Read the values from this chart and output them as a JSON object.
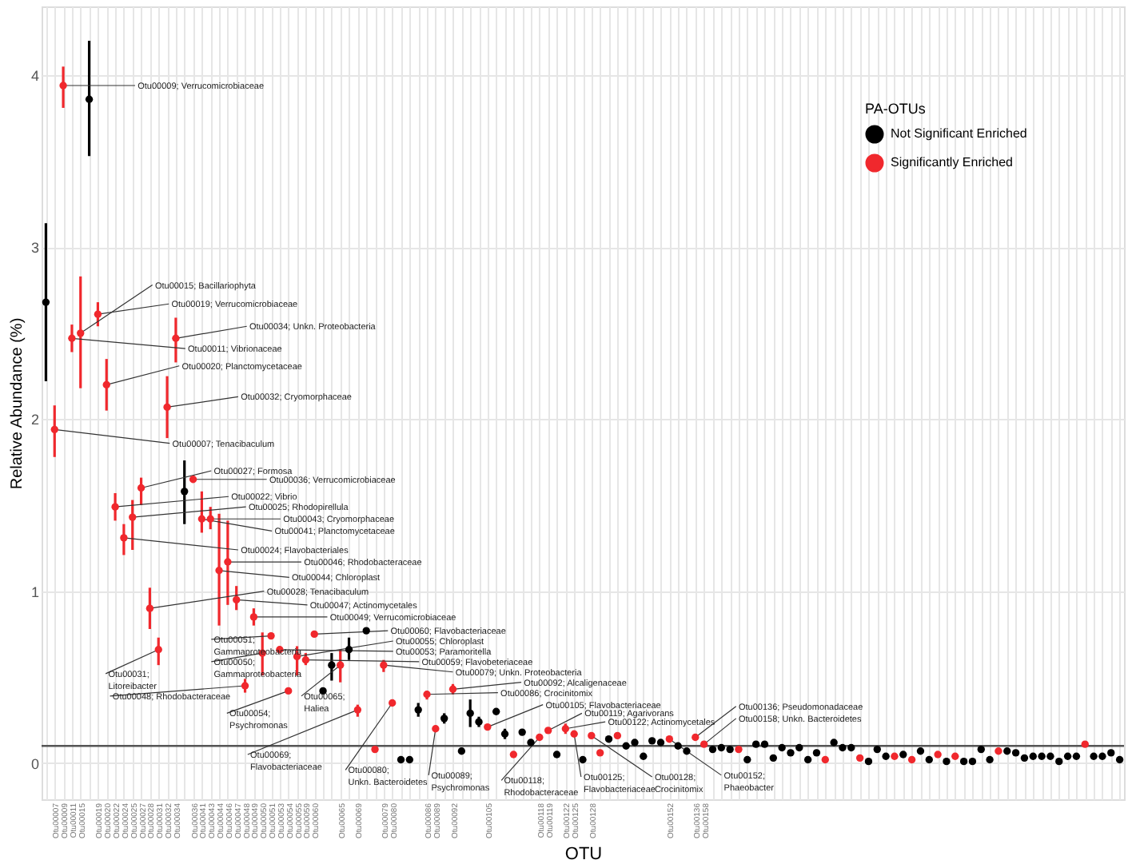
{
  "chart_data": {
    "type": "scatter",
    "xlabel": "OTU",
    "ylabel": "Relative Abundance (%)",
    "legend_title": "PA-OTUs",
    "legend": "top right",
    "grid": true,
    "marker": "circle",
    "ylim": [
      -0.21,
      4.4
    ],
    "yticks": [
      0,
      1,
      2,
      3,
      4
    ],
    "categories": [
      null,
      "Otu00007",
      "Otu00009",
      "Otu00011",
      "Otu00015",
      null,
      "Otu00019",
      "Otu00020",
      "Otu00022",
      "Otu00024",
      "Otu00025",
      "Otu00027",
      "Otu00028",
      "Otu00031",
      "Otu00032",
      "Otu00034",
      null,
      "Otu00036",
      "Otu00041",
      "Otu00043",
      "Otu00044",
      "Otu00046",
      "Otu00047",
      "Otu00048",
      "Otu00049",
      "Otu00050",
      "Otu00051",
      "Otu00053",
      "Otu00054",
      "Otu00055",
      "Otu00059",
      "Otu00060",
      null,
      null,
      "Otu00065",
      null,
      "Otu00069",
      null,
      null,
      "Otu00079",
      "Otu00080",
      null,
      null,
      null,
      "Otu00086",
      "Otu00089",
      null,
      "Otu00092",
      null,
      null,
      null,
      "Otu00105",
      null,
      null,
      null,
      null,
      null,
      "Otu00118",
      "Otu00119",
      null,
      "Otu00122",
      "Otu00125",
      null,
      "Otu00128",
      null,
      null,
      null,
      null,
      null,
      null,
      null,
      null,
      "Otu00152",
      null,
      null,
      "Otu00136",
      "Otu00158",
      null,
      null,
      null,
      null,
      null,
      null,
      null,
      null,
      null,
      null,
      null,
      null,
      null,
      null,
      null,
      null,
      null,
      null,
      null,
      null,
      null,
      null,
      null,
      null,
      null,
      null,
      null,
      null,
      null,
      null,
      null,
      null,
      null,
      null,
      null,
      null,
      null,
      null,
      null,
      null,
      null,
      null,
      null,
      null,
      null,
      null,
      null,
      null
    ],
    "series": [
      {
        "name": "Not Significant Enriched",
        "color": "#000000",
        "values": [
          2.68,
          null,
          null,
          null,
          null,
          3.86,
          null,
          null,
          null,
          null,
          null,
          null,
          null,
          null,
          null,
          null,
          1.58,
          null,
          null,
          null,
          null,
          null,
          null,
          null,
          null,
          null,
          null,
          null,
          null,
          null,
          null,
          null,
          0.42,
          0.57,
          null,
          0.66,
          null,
          0.77,
          null,
          null,
          null,
          0.02,
          0.02,
          0.31,
          null,
          null,
          0.26,
          null,
          0.07,
          0.29,
          0.24,
          null,
          0.3,
          0.17,
          null,
          0.18,
          0.12,
          null,
          null,
          0.05,
          null,
          null,
          0.02,
          null,
          null,
          0.14,
          null,
          0.1,
          0.12,
          0.04,
          0.13,
          0.12,
          null,
          0.1,
          0.07,
          null,
          null,
          0.08,
          0.09,
          0.08,
          null,
          0.02,
          0.11,
          0.11,
          0.03,
          0.09,
          0.06,
          0.09,
          0.02,
          0.06,
          null,
          0.12,
          0.09,
          0.09,
          null,
          0.01,
          0.08,
          0.04,
          null,
          0.05,
          null,
          0.07,
          0.02,
          null,
          0.01,
          null,
          0.01,
          0.01,
          0.08,
          0.02,
          null,
          0.07,
          0.06,
          0.03,
          0.04,
          0.04,
          0.04,
          0.01,
          0.04,
          0.04,
          null,
          0.04,
          0.04,
          0.06,
          0.02
        ],
        "errors": [
          [
            2.22,
            3.14
          ],
          null,
          null,
          null,
          null,
          [
            3.53,
            4.2
          ],
          null,
          null,
          null,
          null,
          null,
          null,
          null,
          null,
          null,
          null,
          [
            1.39,
            1.76
          ],
          null,
          null,
          null,
          null,
          null,
          null,
          null,
          null,
          null,
          null,
          null,
          null,
          null,
          null,
          null,
          null,
          [
            0.48,
            0.64
          ],
          null,
          [
            0.6,
            0.73
          ],
          null,
          null,
          null,
          null,
          null,
          null,
          null,
          [
            0.27,
            0.35
          ],
          null,
          null,
          [
            0.23,
            0.29
          ],
          null,
          null,
          [
            0.21,
            0.37
          ],
          [
            0.21,
            0.27
          ],
          null,
          null,
          [
            0.14,
            0.2
          ],
          null,
          null,
          null,
          null,
          null,
          null,
          null,
          null,
          null,
          null,
          null,
          null,
          null,
          null,
          null,
          null,
          null,
          null,
          null,
          null,
          null,
          null,
          null,
          null,
          null,
          null,
          null,
          null,
          null,
          null,
          null,
          null,
          null,
          null,
          null,
          null,
          null,
          null,
          null,
          null,
          null,
          null,
          null,
          null,
          null,
          null,
          null,
          null,
          null,
          null,
          null,
          null,
          null,
          null,
          null,
          null,
          null,
          null,
          null,
          null,
          null,
          null,
          null,
          null,
          null,
          null,
          null,
          null,
          null,
          null,
          null
        ]
      },
      {
        "name": "Significantly Enriched",
        "color": "#f0282d",
        "values": [
          null,
          1.94,
          3.94,
          2.47,
          2.5,
          null,
          2.61,
          2.2,
          1.49,
          1.31,
          1.43,
          1.6,
          0.9,
          0.66,
          2.07,
          2.47,
          null,
          1.65,
          1.42,
          1.42,
          1.12,
          1.17,
          0.95,
          0.45,
          0.85,
          0.64,
          0.74,
          0.66,
          0.42,
          0.62,
          0.6,
          0.75,
          null,
          null,
          0.57,
          null,
          0.31,
          null,
          0.08,
          0.57,
          0.35,
          null,
          null,
          null,
          0.4,
          0.2,
          null,
          0.43,
          null,
          null,
          null,
          0.21,
          null,
          null,
          0.05,
          null,
          null,
          0.15,
          0.19,
          null,
          0.2,
          0.17,
          null,
          0.16,
          0.06,
          null,
          0.16,
          null,
          null,
          null,
          null,
          null,
          0.14,
          null,
          null,
          0.15,
          0.11,
          null,
          null,
          null,
          0.08,
          null,
          null,
          null,
          null,
          null,
          null,
          null,
          null,
          null,
          0.02,
          null,
          null,
          null,
          0.03,
          null,
          null,
          null,
          0.04,
          null,
          0.02,
          null,
          null,
          0.05,
          null,
          0.04,
          null,
          null,
          null,
          null,
          0.07,
          null,
          null,
          null,
          null,
          null,
          null,
          null,
          null,
          null,
          0.11,
          null,
          null,
          null,
          null
        ],
        "errors": [
          null,
          [
            1.78,
            2.08
          ],
          [
            3.81,
            4.05
          ],
          [
            2.39,
            2.55
          ],
          [
            2.18,
            2.83
          ],
          null,
          [
            2.54,
            2.68
          ],
          [
            2.05,
            2.35
          ],
          [
            1.41,
            1.57
          ],
          [
            1.21,
            1.39
          ],
          [
            1.24,
            1.53
          ],
          [
            1.5,
            1.66
          ],
          [
            0.78,
            1.02
          ],
          [
            0.57,
            0.73
          ],
          [
            1.89,
            2.25
          ],
          [
            2.33,
            2.59
          ],
          null,
          [
            1.63,
            1.67
          ],
          [
            1.34,
            1.58
          ],
          [
            1.36,
            1.49
          ],
          [
            0.8,
            1.45
          ],
          [
            0.92,
            1.41
          ],
          [
            0.89,
            1.03
          ],
          [
            0.41,
            0.49
          ],
          [
            0.8,
            0.9
          ],
          [
            0.51,
            0.76
          ],
          [
            0.72,
            0.76
          ],
          null,
          null,
          [
            0.51,
            0.68
          ],
          [
            0.57,
            0.64
          ],
          null,
          null,
          null,
          [
            0.47,
            0.66
          ],
          null,
          [
            0.27,
            0.34
          ],
          null,
          null,
          [
            0.53,
            0.6
          ],
          null,
          null,
          null,
          null,
          [
            0.37,
            0.42
          ],
          null,
          null,
          [
            0.4,
            0.46
          ],
          null,
          null,
          null,
          null,
          null,
          null,
          null,
          null,
          null,
          null,
          null,
          null,
          [
            0.17,
            0.23
          ],
          null,
          null,
          null,
          null,
          null,
          null,
          null,
          null,
          null,
          null,
          null,
          null,
          null,
          null,
          null,
          null,
          null,
          null,
          null,
          null,
          null,
          null,
          null,
          null,
          null,
          null,
          null,
          null,
          null,
          null,
          null,
          null,
          null,
          null,
          null,
          null,
          null,
          null,
          null,
          null,
          null,
          null,
          null,
          null,
          null,
          null,
          null,
          null,
          null,
          null,
          null,
          null,
          null,
          null,
          null,
          null,
          null,
          null,
          null,
          null,
          null,
          null,
          null,
          null
        ]
      }
    ],
    "ref_lines": [
      {
        "axis": "y",
        "value": 0.1,
        "color": "#555555"
      }
    ],
    "annotations": [
      {
        "text": "Otu00009; Verrucomicrobiaceae",
        "x": "Otu00009",
        "y": 3.94
      },
      {
        "text": "Otu00015; Bacillariophyta",
        "x": "Otu00015",
        "y": 2.5
      },
      {
        "text": "Otu00019; Verrucomicrobiaceae",
        "x": "Otu00019",
        "y": 2.61
      },
      {
        "text": "Otu00034; Unkn. Proteobacteria",
        "x": "Otu00034",
        "y": 2.47
      },
      {
        "text": "Otu00011; Vibrionaceae",
        "x": "Otu00011",
        "y": 2.47
      },
      {
        "text": "Otu00020; Planctomycetaceae",
        "x": "Otu00020",
        "y": 2.2
      },
      {
        "text": "Otu00032; Cryomorphaceae",
        "x": "Otu00032",
        "y": 2.07
      },
      {
        "text": "Otu00007; Tenacibaculum",
        "x": "Otu00007",
        "y": 1.94
      },
      {
        "text": "Otu00027; Formosa",
        "x": "Otu00027",
        "y": 1.6
      },
      {
        "text": "Otu00036; Verrucomicrobiaceae",
        "x": "Otu00036",
        "y": 1.65
      },
      {
        "text": "Otu00022; Vibrio",
        "x": "Otu00022",
        "y": 1.49
      },
      {
        "text": "Otu00025; Rhodopirellula",
        "x": "Otu00025",
        "y": 1.43
      },
      {
        "text": "Otu00043; Cryomorphaceae",
        "x": "Otu00043",
        "y": 1.42
      },
      {
        "text": "Otu00041; Planctomycetaceae",
        "x": "Otu00041",
        "y": 1.42
      },
      {
        "text": "Otu00024; Flavobacteriales",
        "x": "Otu00024",
        "y": 1.31
      },
      {
        "text": "Otu00046; Rhodobacteraceae",
        "x": "Otu00046",
        "y": 1.17
      },
      {
        "text": "Otu00044; Chloroplast",
        "x": "Otu00044",
        "y": 1.12
      },
      {
        "text": "Otu00028; Tenacibaculum",
        "x": "Otu00028",
        "y": 0.9
      },
      {
        "text": "Otu00047; Actinomycetales",
        "x": "Otu00047",
        "y": 0.95
      },
      {
        "text": "Otu00049; Verrucomicrobiaceae",
        "x": "Otu00049",
        "y": 0.85
      },
      {
        "text": "Otu00051; Gammaproteobacteria",
        "x": "Otu00051",
        "y": 0.74
      },
      {
        "text": "Otu00050; Gammaproteobacteria",
        "x": "Otu00050",
        "y": 0.64
      },
      {
        "text": "Otu00031; Litoreibacter",
        "x": "Otu00031",
        "y": 0.66
      },
      {
        "text": "Otu00048; Rhodobacteraceae",
        "x": "Otu00048",
        "y": 0.45
      },
      {
        "text": "Otu00054; Psychromonas",
        "x": "Otu00054",
        "y": 0.42
      },
      {
        "text": "Otu00065; Haliea",
        "x": "Otu00065",
        "y": 0.57
      },
      {
        "text": "Otu00060; Flavobacteriaceae",
        "x": "Otu00060",
        "y": 0.75
      },
      {
        "text": "Otu00055; Chloroplast",
        "x": "Otu00055",
        "y": 0.62
      },
      {
        "text": "Otu00053; Paramoritella",
        "x": "Otu00053",
        "y": 0.66
      },
      {
        "text": "Otu00059; Flavobeteriaceae",
        "x": "Otu00059",
        "y": 0.6
      },
      {
        "text": "Otu00079; Unkn. Proteobacteria",
        "x": "Otu00079",
        "y": 0.57
      },
      {
        "text": "Otu00092; Alcaligenaceae",
        "x": "Otu00092",
        "y": 0.43
      },
      {
        "text": "Otu00086; Crocinitomix",
        "x": "Otu00086",
        "y": 0.4
      },
      {
        "text": "Otu00105; Flavobacteriaceae",
        "x": "Otu00105",
        "y": 0.21
      },
      {
        "text": "Otu00119; Agarivorans",
        "x": "Otu00119",
        "y": 0.19
      },
      {
        "text": "Otu00122; Actinomycetales",
        "x": "Otu00122",
        "y": 0.2
      },
      {
        "text": "Otu00136; Pseudomonadaceae",
        "x": "Otu00136",
        "y": 0.15
      },
      {
        "text": "Otu00158; Unkn. Bacteroidetes",
        "x": "Otu00158",
        "y": 0.11
      },
      {
        "text": "Otu00069; Flavobacteriaceae",
        "x": "Otu00069",
        "y": 0.31
      },
      {
        "text": "Otu00080; Unkn. Bacteroidetes",
        "x": "Otu00080",
        "y": 0.35
      },
      {
        "text": "Otu00089; Psychromonas",
        "x": "Otu00089",
        "y": 0.2
      },
      {
        "text": "Otu00118; Rhodobacteraceae",
        "x": "Otu00118",
        "y": 0.15
      },
      {
        "text": "Otu00125; Flavobacteriaceae",
        "x": "Otu00125",
        "y": 0.17
      },
      {
        "text": "Otu00128; Crocinitomix",
        "x": "Otu00128",
        "y": 0.16
      },
      {
        "text": "Otu00152; Phaeobacter",
        "x": "Otu00152",
        "y": 0.14
      }
    ]
  }
}
